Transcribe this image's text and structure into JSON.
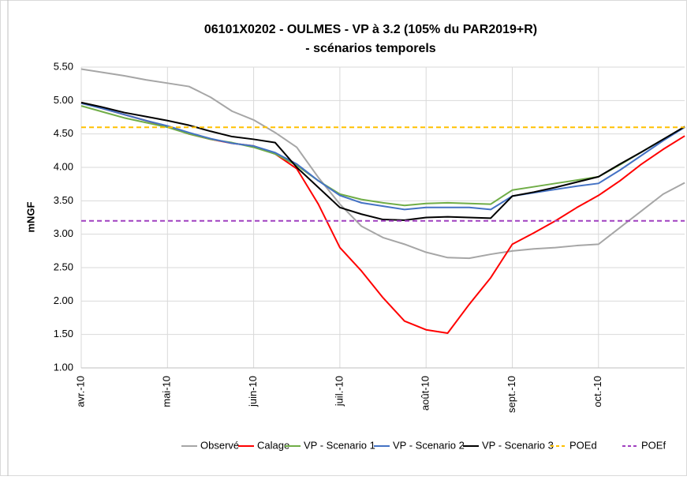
{
  "chart_data": {
    "type": "line",
    "title": "06101X0202 - OULMES - VP à 3.2 (105% du PAR2019+R)",
    "subtitle": "- scénarios temporels",
    "y_label": "mNGF",
    "x": [
      0,
      0.25,
      0.5,
      0.75,
      1,
      1.25,
      1.5,
      1.75,
      2,
      2.25,
      2.5,
      2.75,
      3,
      3.25,
      3.5,
      3.75,
      4,
      4.25,
      4.5,
      4.75,
      5,
      5.25,
      5.5,
      5.75,
      6,
      6.25,
      6.5,
      6.75,
      7
    ],
    "xlim": [
      0,
      7
    ],
    "xticks": [
      {
        "value": 0,
        "label": "avr.-10"
      },
      {
        "value": 1,
        "label": "mai-10"
      },
      {
        "value": 2,
        "label": "juin-10"
      },
      {
        "value": 3,
        "label": "juil.-10"
      },
      {
        "value": 4,
        "label": "août-10"
      },
      {
        "value": 5,
        "label": "sept.-10"
      },
      {
        "value": 6,
        "label": "oct.-10"
      }
    ],
    "ylim": [
      1,
      5.5
    ],
    "yticks": [
      {
        "value": 1,
        "label": "1.00"
      },
      {
        "value": 1.5,
        "label": "1.50"
      },
      {
        "value": 2,
        "label": "2.00"
      },
      {
        "value": 2.5,
        "label": "2.50"
      },
      {
        "value": 3,
        "label": "3.00"
      },
      {
        "value": 3.5,
        "label": "3.50"
      },
      {
        "value": 4,
        "label": "4.00"
      },
      {
        "value": 4.5,
        "label": "4.50"
      },
      {
        "value": 5,
        "label": "5.00"
      },
      {
        "value": 5.5,
        "label": "5.50"
      }
    ],
    "grid": true,
    "legend": "bottom",
    "series": [
      {
        "name": "Observé",
        "color": "#a6a6a6",
        "values": [
          5.47,
          5.42,
          5.37,
          5.31,
          5.26,
          5.21,
          5.05,
          4.84,
          4.71,
          4.52,
          4.3,
          3.85,
          3.45,
          3.12,
          2.95,
          2.85,
          2.73,
          2.65,
          2.64,
          2.7,
          2.75,
          2.78,
          2.8,
          2.83,
          2.85,
          3.1,
          3.35,
          3.6,
          3.77
        ]
      },
      {
        "name": "Calage",
        "color": "#ff0000",
        "values": [
          4.97,
          4.88,
          4.79,
          4.7,
          4.61,
          4.5,
          4.42,
          4.36,
          4.32,
          4.2,
          3.98,
          3.45,
          2.8,
          2.45,
          2.05,
          1.7,
          1.57,
          1.52,
          1.95,
          2.35,
          2.85,
          3.02,
          3.2,
          3.4,
          3.58,
          3.8,
          4.05,
          4.27,
          4.47
        ]
      },
      {
        "name": "VP - Scenario 1",
        "color": "#70ad47",
        "values": [
          4.92,
          4.83,
          4.74,
          4.67,
          4.6,
          4.5,
          4.42,
          4.37,
          4.3,
          4.2,
          4.03,
          3.8,
          3.6,
          3.52,
          3.47,
          3.43,
          3.46,
          3.47,
          3.46,
          3.45,
          3.66,
          3.71,
          3.76,
          3.81,
          3.86,
          4.04,
          4.23,
          4.42,
          4.6
        ]
      },
      {
        "name": "VP - Scenario 2",
        "color": "#4472c4",
        "values": [
          4.96,
          4.88,
          4.79,
          4.7,
          4.62,
          4.52,
          4.43,
          4.36,
          4.32,
          4.22,
          4.05,
          3.8,
          3.58,
          3.47,
          3.42,
          3.37,
          3.4,
          3.4,
          3.4,
          3.37,
          3.57,
          3.62,
          3.67,
          3.72,
          3.76,
          3.96,
          4.18,
          4.4,
          4.6
        ]
      },
      {
        "name": "VP - Scenario 3",
        "color": "#000000",
        "values": [
          4.97,
          4.9,
          4.82,
          4.76,
          4.7,
          4.63,
          4.54,
          4.46,
          4.42,
          4.37,
          4.0,
          3.7,
          3.4,
          3.3,
          3.22,
          3.21,
          3.25,
          3.26,
          3.25,
          3.24,
          3.57,
          3.63,
          3.7,
          3.78,
          3.86,
          4.05,
          4.23,
          4.42,
          4.61
        ]
      },
      {
        "name": "POEd",
        "color": "#ffc000",
        "dashed": true,
        "x": [
          0,
          7
        ],
        "values": [
          4.6,
          4.6
        ]
      },
      {
        "name": "POEf",
        "color": "#a040c0",
        "dashed": true,
        "x": [
          0,
          7
        ],
        "values": [
          3.2,
          3.2
        ]
      }
    ]
  }
}
